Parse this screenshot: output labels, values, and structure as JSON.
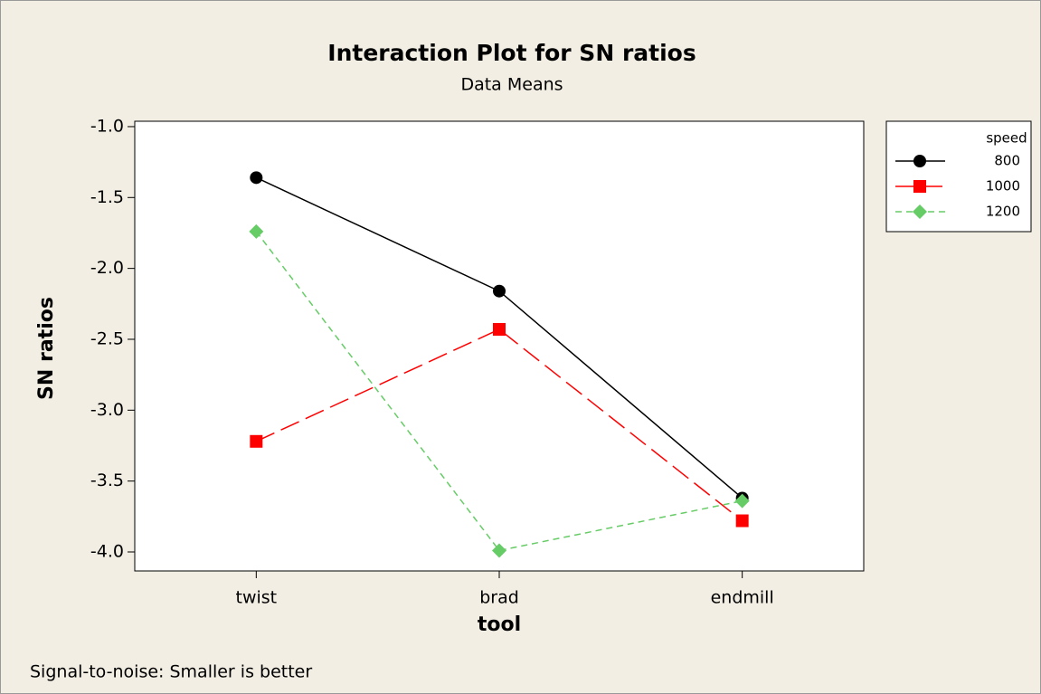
{
  "chart_data": {
    "type": "line",
    "title": "Interaction Plot for SN ratios",
    "subtitle": "Data Means",
    "x_label": "tool",
    "y_label": "SN ratios",
    "annotation": "Signal-to-noise: Smaller is better",
    "categories": [
      "twist",
      "brad",
      "endmill"
    ],
    "legend_title": "speed",
    "legend_position": "right",
    "series": [
      {
        "name": "800",
        "color": "#000000",
        "marker": "circle",
        "line_style": "solid",
        "values": [
          -1.36,
          -2.16,
          -3.62
        ]
      },
      {
        "name": "1000",
        "color": "#ff0000",
        "marker": "square",
        "line_style": "dashed",
        "values": [
          -3.22,
          -2.43,
          -3.78
        ]
      },
      {
        "name": "1200",
        "color": "#66cc66",
        "marker": "diamond",
        "line_style": "dotted",
        "values": [
          -1.74,
          -3.99,
          -3.64
        ]
      }
    ],
    "ylim": [
      -4.134,
      -0.962
    ],
    "yticks": [
      {
        "value": -1.0,
        "label": "-1.0"
      },
      -1.5,
      {
        "value": -2.0,
        "label": "-2.0"
      },
      -2.5,
      {
        "value": -3.0,
        "label": "-3.0"
      },
      -3.5,
      {
        "value": -4.0,
        "label": "-4.0"
      }
    ]
  }
}
